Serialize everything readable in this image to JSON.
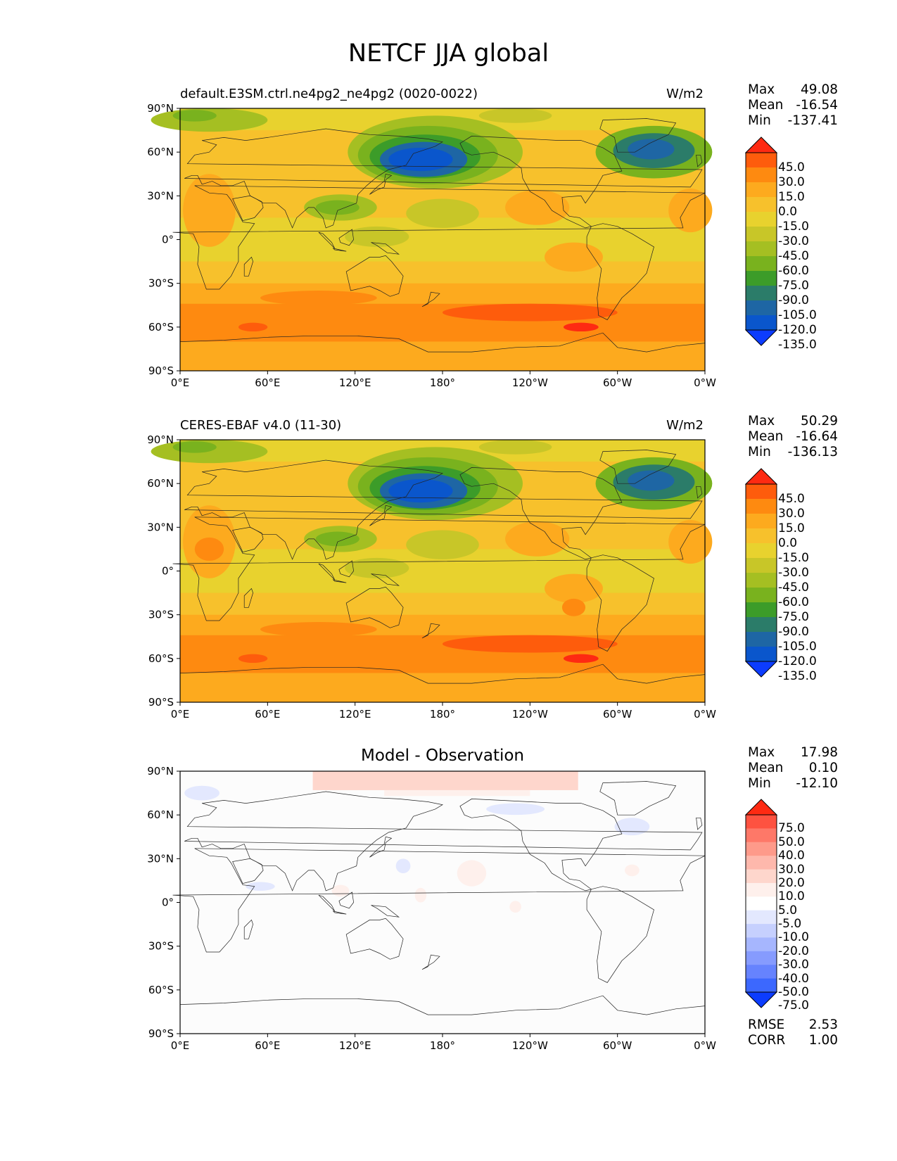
{
  "figure_title": "NETCF JJA global",
  "x_ticks": [
    "0°E",
    "60°E",
    "120°E",
    "180°",
    "120°W",
    "60°W",
    "0°W"
  ],
  "y_ticks": [
    "90°N",
    "60°N",
    "30°N",
    "0°",
    "30°S",
    "60°S",
    "90°S"
  ],
  "panels": [
    {
      "title_left": "default.E3SM.ctrl.ne4pg2_ne4pg2 (0020-0022)",
      "title_right": "W/m2",
      "title_center": "",
      "stats": [
        {
          "label": "Max",
          "value": "49.08"
        },
        {
          "label": "Mean",
          "value": "-16.54"
        },
        {
          "label": "Min",
          "value": "-137.41"
        }
      ],
      "colorbar_labels": [
        "45.0",
        "30.0",
        "15.0",
        "0.0",
        "-15.0",
        "-30.0",
        "-45.0",
        "-60.0",
        "-75.0",
        "-90.0",
        "-105.0",
        "-120.0",
        "-135.0"
      ]
    },
    {
      "title_left": "CERES-EBAF v4.0 (11-30)",
      "title_right": "W/m2",
      "title_center": "",
      "stats": [
        {
          "label": "Max",
          "value": "50.29"
        },
        {
          "label": "Mean",
          "value": "-16.64"
        },
        {
          "label": "Min",
          "value": "-136.13"
        }
      ],
      "colorbar_labels": [
        "45.0",
        "30.0",
        "15.0",
        "0.0",
        "-15.0",
        "-30.0",
        "-45.0",
        "-60.0",
        "-75.0",
        "-90.0",
        "-105.0",
        "-120.0",
        "-135.0"
      ]
    },
    {
      "title_left": "",
      "title_right": "",
      "title_center": "Model - Observation",
      "stats": [
        {
          "label": "Max",
          "value": "17.98"
        },
        {
          "label": "Mean",
          "value": "0.10"
        },
        {
          "label": "Min",
          "value": "-12.10"
        }
      ],
      "colorbar_labels": [
        "75.0",
        "50.0",
        "40.0",
        "30.0",
        "20.0",
        "10.0",
        "5.0",
        "-5.0",
        "-10.0",
        "-20.0",
        "-30.0",
        "-40.0",
        "-50.0",
        "-75.0"
      ],
      "extra_stats": [
        {
          "label": "RMSE",
          "value": "2.53"
        },
        {
          "label": "CORR",
          "value": "1.00"
        }
      ]
    }
  ],
  "colors": {
    "field_scale": [
      "#fe2a12",
      "#fe5c0c",
      "#fe8a10",
      "#fdaa1e",
      "#f7c12c",
      "#e8d22e",
      "#c8c628",
      "#a5bf22",
      "#79b21e",
      "#3c9c29",
      "#2b7c69",
      "#1e66a4",
      "#0a56cc",
      "#0c3cfe"
    ],
    "diff_scale": [
      "#fe2a12",
      "#fe5240",
      "#fe7868",
      "#fe9a8a",
      "#feb8ac",
      "#fed6cc",
      "#fef0ec",
      "#ffffff",
      "#e3e8fe",
      "#c6d0fe",
      "#a6b6fe",
      "#869bfe",
      "#6683fe",
      "#3c68fe",
      "#0c3cfe"
    ]
  }
}
